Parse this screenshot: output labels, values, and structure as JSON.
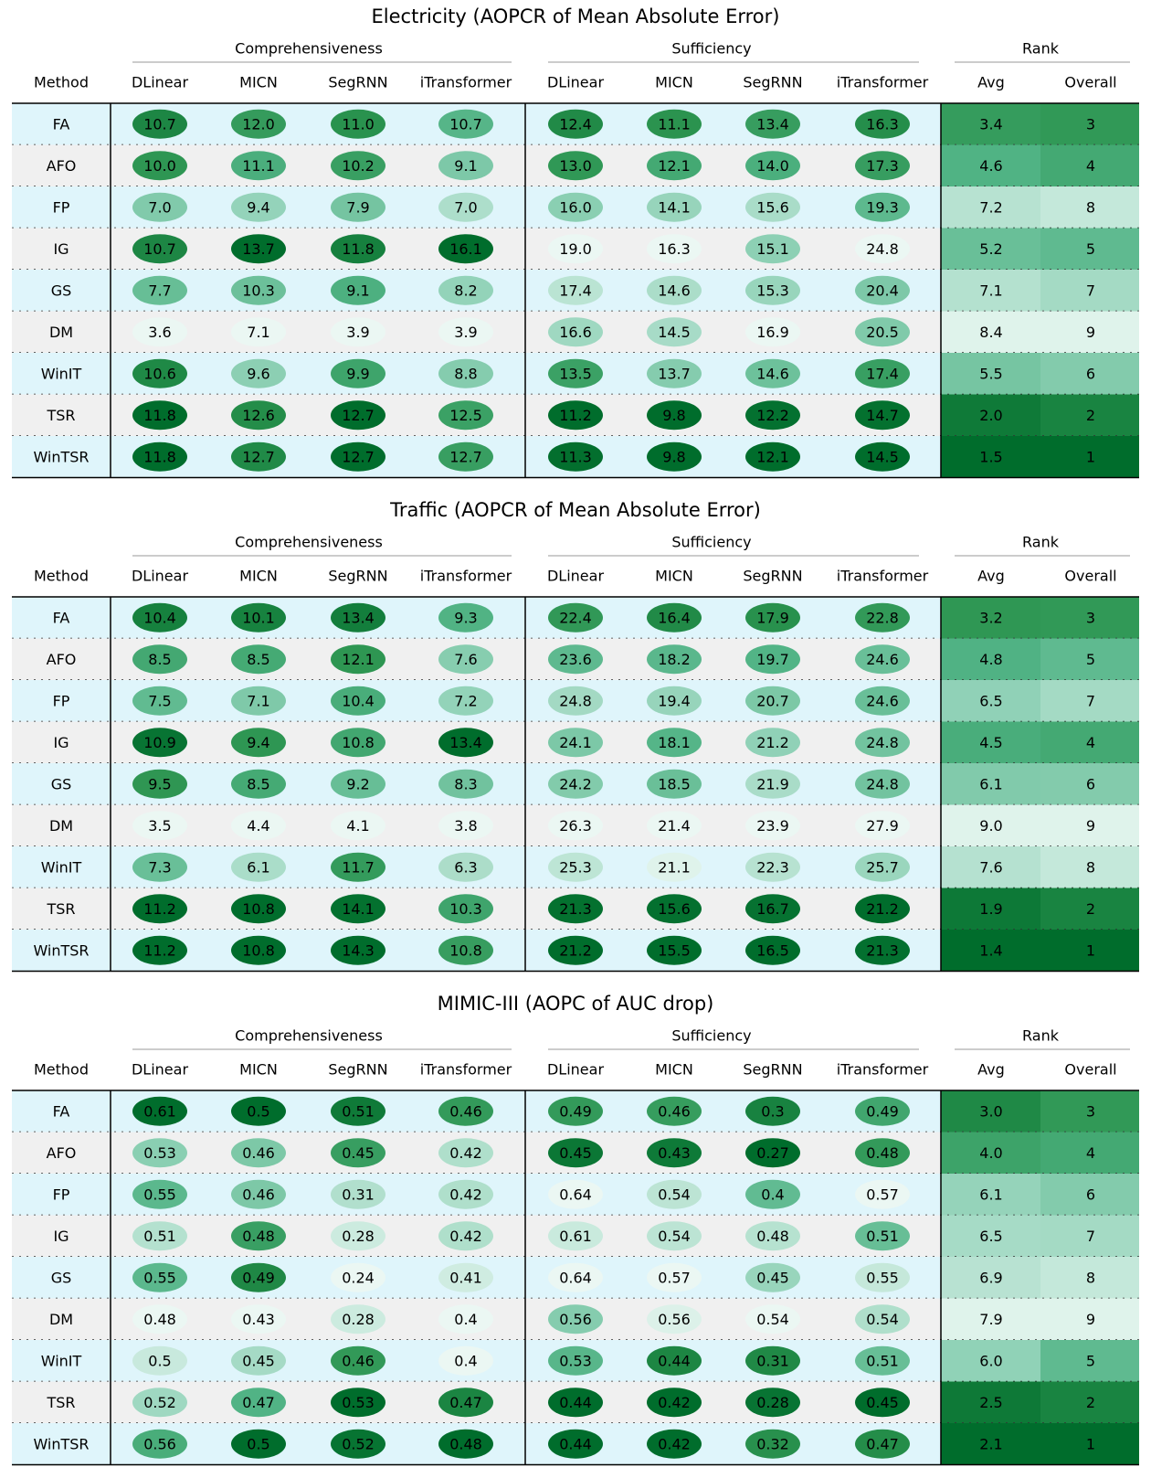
{
  "chart_data": [
    {
      "type": "table",
      "title": "Electricity (AOPCR of Mean Absolute Error)",
      "groups": [
        "Comprehensiveness",
        "Sufficiency",
        "Rank"
      ],
      "columns": [
        "Method",
        "DLinear",
        "MICN",
        "SegRNN",
        "iTransformer",
        "DLinear",
        "MICN",
        "SegRNN",
        "iTransformer",
        "Avg",
        "Overall"
      ],
      "rows": [
        {
          "method": "FA",
          "comp": [
            "10.7",
            "12.0",
            "11.0",
            "10.7"
          ],
          "suff": [
            "12.4",
            "11.1",
            "13.4",
            "16.3"
          ],
          "avg": "3.4",
          "overall": "3"
        },
        {
          "method": "AFO",
          "comp": [
            "10.0",
            "11.1",
            "10.2",
            "9.1"
          ],
          "suff": [
            "13.0",
            "12.1",
            "14.0",
            "17.3"
          ],
          "avg": "4.6",
          "overall": "4"
        },
        {
          "method": "FP",
          "comp": [
            "7.0",
            "9.4",
            "7.9",
            "7.0"
          ],
          "suff": [
            "16.0",
            "14.1",
            "15.6",
            "19.3"
          ],
          "avg": "7.2",
          "overall": "8"
        },
        {
          "method": "IG",
          "comp": [
            "10.7",
            "13.7",
            "11.8",
            "16.1"
          ],
          "suff": [
            "19.0",
            "16.3",
            "15.1",
            "24.8"
          ],
          "avg": "5.2",
          "overall": "5"
        },
        {
          "method": "GS",
          "comp": [
            "7.7",
            "10.3",
            "9.1",
            "8.2"
          ],
          "suff": [
            "17.4",
            "14.6",
            "15.3",
            "20.4"
          ],
          "avg": "7.1",
          "overall": "7"
        },
        {
          "method": "DM",
          "comp": [
            "3.6",
            "7.1",
            "3.9",
            "3.9"
          ],
          "suff": [
            "16.6",
            "14.5",
            "16.9",
            "20.5"
          ],
          "avg": "8.4",
          "overall": "9"
        },
        {
          "method": "WinIT",
          "comp": [
            "10.6",
            "9.6",
            "9.9",
            "8.8"
          ],
          "suff": [
            "13.5",
            "13.7",
            "14.6",
            "17.4"
          ],
          "avg": "5.5",
          "overall": "6"
        },
        {
          "method": "TSR",
          "comp": [
            "11.8",
            "12.6",
            "12.7",
            "12.5"
          ],
          "suff": [
            "11.2",
            "9.8",
            "12.2",
            "14.7"
          ],
          "avg": "2.0",
          "overall": "2"
        },
        {
          "method": "WinTSR",
          "comp": [
            "11.8",
            "12.7",
            "12.7",
            "12.7"
          ],
          "suff": [
            "11.3",
            "9.8",
            "12.1",
            "14.5"
          ],
          "avg": "1.5",
          "overall": "1"
        }
      ]
    },
    {
      "type": "table",
      "title": "Traffic (AOPCR of Mean Absolute Error)",
      "groups": [
        "Comprehensiveness",
        "Sufficiency",
        "Rank"
      ],
      "columns": [
        "Method",
        "DLinear",
        "MICN",
        "SegRNN",
        "iTransformer",
        "DLinear",
        "MICN",
        "SegRNN",
        "iTransformer",
        "Avg",
        "Overall"
      ],
      "rows": [
        {
          "method": "FA",
          "comp": [
            "10.4",
            "10.1",
            "13.4",
            "9.3"
          ],
          "suff": [
            "22.4",
            "16.4",
            "17.9",
            "22.8"
          ],
          "avg": "3.2",
          "overall": "3"
        },
        {
          "method": "AFO",
          "comp": [
            "8.5",
            "8.5",
            "12.1",
            "7.6"
          ],
          "suff": [
            "23.6",
            "18.2",
            "19.7",
            "24.6"
          ],
          "avg": "4.8",
          "overall": "5"
        },
        {
          "method": "FP",
          "comp": [
            "7.5",
            "7.1",
            "10.4",
            "7.2"
          ],
          "suff": [
            "24.8",
            "19.4",
            "20.7",
            "24.6"
          ],
          "avg": "6.5",
          "overall": "7"
        },
        {
          "method": "IG",
          "comp": [
            "10.9",
            "9.4",
            "10.8",
            "13.4"
          ],
          "suff": [
            "24.1",
            "18.1",
            "21.2",
            "24.8"
          ],
          "avg": "4.5",
          "overall": "4"
        },
        {
          "method": "GS",
          "comp": [
            "9.5",
            "8.5",
            "9.2",
            "8.3"
          ],
          "suff": [
            "24.2",
            "18.5",
            "21.9",
            "24.8"
          ],
          "avg": "6.1",
          "overall": "6"
        },
        {
          "method": "DM",
          "comp": [
            "3.5",
            "4.4",
            "4.1",
            "3.8"
          ],
          "suff": [
            "26.3",
            "21.4",
            "23.9",
            "27.9"
          ],
          "avg": "9.0",
          "overall": "9"
        },
        {
          "method": "WinIT",
          "comp": [
            "7.3",
            "6.1",
            "11.7",
            "6.3"
          ],
          "suff": [
            "25.3",
            "21.1",
            "22.3",
            "25.7"
          ],
          "avg": "7.6",
          "overall": "8"
        },
        {
          "method": "TSR",
          "comp": [
            "11.2",
            "10.8",
            "14.1",
            "10.3"
          ],
          "suff": [
            "21.3",
            "15.6",
            "16.7",
            "21.2"
          ],
          "avg": "1.9",
          "overall": "2"
        },
        {
          "method": "WinTSR",
          "comp": [
            "11.2",
            "10.8",
            "14.3",
            "10.8"
          ],
          "suff": [
            "21.2",
            "15.5",
            "16.5",
            "21.3"
          ],
          "avg": "1.4",
          "overall": "1"
        }
      ]
    },
    {
      "type": "table",
      "title": "MIMIC-III (AOPC of AUC drop)",
      "groups": [
        "Comprehensiveness",
        "Sufficiency",
        "Rank"
      ],
      "columns": [
        "Method",
        "DLinear",
        "MICN",
        "SegRNN",
        "iTransformer",
        "DLinear",
        "MICN",
        "SegRNN",
        "iTransformer",
        "Avg",
        "Overall"
      ],
      "rows": [
        {
          "method": "FA",
          "comp": [
            "0.61",
            "0.5",
            "0.51",
            "0.46"
          ],
          "suff": [
            "0.49",
            "0.46",
            "0.3",
            "0.49"
          ],
          "avg": "3.0",
          "overall": "3"
        },
        {
          "method": "AFO",
          "comp": [
            "0.53",
            "0.46",
            "0.45",
            "0.42"
          ],
          "suff": [
            "0.45",
            "0.43",
            "0.27",
            "0.48"
          ],
          "avg": "4.0",
          "overall": "4"
        },
        {
          "method": "FP",
          "comp": [
            "0.55",
            "0.46",
            "0.31",
            "0.42"
          ],
          "suff": [
            "0.64",
            "0.54",
            "0.4",
            "0.57"
          ],
          "avg": "6.1",
          "overall": "6"
        },
        {
          "method": "IG",
          "comp": [
            "0.51",
            "0.48",
            "0.28",
            "0.42"
          ],
          "suff": [
            "0.61",
            "0.54",
            "0.48",
            "0.51"
          ],
          "avg": "6.5",
          "overall": "7"
        },
        {
          "method": "GS",
          "comp": [
            "0.55",
            "0.49",
            "0.24",
            "0.41"
          ],
          "suff": [
            "0.64",
            "0.57",
            "0.45",
            "0.55"
          ],
          "avg": "6.9",
          "overall": "8"
        },
        {
          "method": "DM",
          "comp": [
            "0.48",
            "0.43",
            "0.28",
            "0.4"
          ],
          "suff": [
            "0.56",
            "0.56",
            "0.54",
            "0.54"
          ],
          "avg": "7.9",
          "overall": "9"
        },
        {
          "method": "WinIT",
          "comp": [
            "0.5",
            "0.45",
            "0.46",
            "0.4"
          ],
          "suff": [
            "0.53",
            "0.44",
            "0.31",
            "0.51"
          ],
          "avg": "6.0",
          "overall": "5"
        },
        {
          "method": "TSR",
          "comp": [
            "0.52",
            "0.47",
            "0.53",
            "0.47"
          ],
          "suff": [
            "0.44",
            "0.42",
            "0.28",
            "0.45"
          ],
          "avg": "2.5",
          "overall": "2"
        },
        {
          "method": "WinTSR",
          "comp": [
            "0.56",
            "0.5",
            "0.52",
            "0.48"
          ],
          "suff": [
            "0.44",
            "0.42",
            "0.32",
            "0.47"
          ],
          "avg": "2.1",
          "overall": "1"
        }
      ]
    }
  ],
  "colors": {
    "row_light_blue": "#dff5fb",
    "row_light_gray": "#f0f0f0",
    "scale": [
      "#f7fcfa",
      "#c7e9dc",
      "#8fd1b6",
      "#4fb283",
      "#2d9551",
      "#006d2c"
    ]
  }
}
